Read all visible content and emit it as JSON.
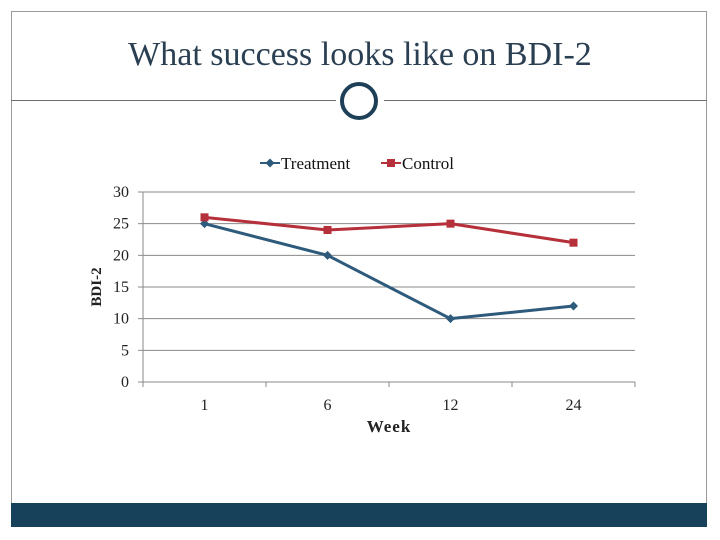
{
  "slide": {
    "title": "What success looks like on BDI-2"
  },
  "colors": {
    "treatment": "#2e5a7c",
    "control": "#b5303a",
    "footer": "#17405a",
    "title": "#2b3f52"
  },
  "chart_data": {
    "type": "line",
    "categories": [
      "1",
      "6",
      "12",
      "24"
    ],
    "series": [
      {
        "name": "Treatment",
        "values": [
          25,
          20,
          10,
          12
        ],
        "marker": "diamond"
      },
      {
        "name": "Control",
        "values": [
          26,
          24,
          25,
          22
        ],
        "marker": "square"
      }
    ],
    "title": "",
    "xlabel": "Week",
    "ylabel": "BDI-2",
    "ylim": [
      0,
      30
    ],
    "yticks": [
      0,
      5,
      10,
      15,
      20,
      25,
      30
    ],
    "grid": true,
    "legend": "top-center"
  }
}
